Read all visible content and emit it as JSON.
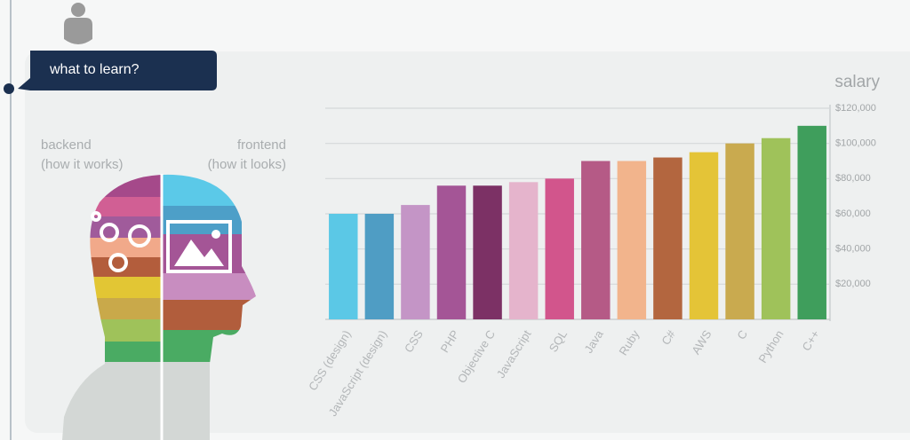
{
  "bubble": {
    "label": "what to learn?"
  },
  "head": {
    "left_title": "backend",
    "left_subtitle": "(how it works)",
    "right_title": "frontend",
    "right_subtitle": "(how it looks)"
  },
  "chart_data": {
    "type": "bar",
    "y_label": "salary",
    "categories": [
      "CSS (design)",
      "JavaScript (design)",
      "CSS",
      "PHP",
      "Objective C",
      "JavaScript",
      "SQL",
      "Java",
      "Ruby",
      "C#",
      "AWS",
      "C",
      "Python",
      "C++"
    ],
    "values": [
      60000,
      60000,
      65000,
      76000,
      76000,
      78000,
      80000,
      90000,
      90000,
      92000,
      95000,
      100000,
      103000,
      110000
    ],
    "colors": [
      "#5bc8e6",
      "#4f9dc4",
      "#c495c6",
      "#a45596",
      "#7c3165",
      "#e5b4cc",
      "#d2558c",
      "#b55a86",
      "#f2b48c",
      "#b3663f",
      "#e4c437",
      "#c9aa4f",
      "#9fc25a",
      "#3f9e5c"
    ],
    "ylim": [
      0,
      120000
    ],
    "yticks": [
      {
        "value": 20000,
        "label": "$20,000"
      },
      {
        "value": 40000,
        "label": "$40,000"
      },
      {
        "value": 60000,
        "label": "$60,000"
      },
      {
        "value": 80000,
        "label": "$80,000"
      },
      {
        "value": 100000,
        "label": "$100,000"
      },
      {
        "value": 120000,
        "label": "$120,000"
      }
    ],
    "grid": true,
    "axis_side": "right"
  }
}
